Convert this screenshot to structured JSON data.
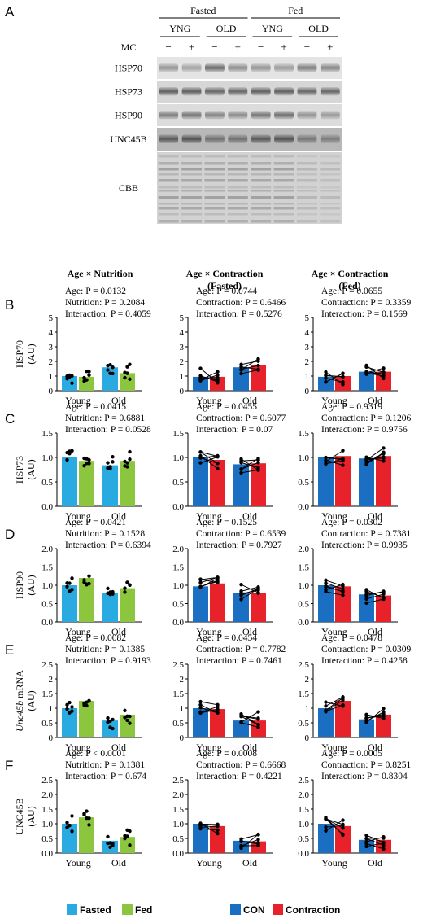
{
  "panel_letters": [
    "A",
    "B",
    "C",
    "D",
    "E",
    "F"
  ],
  "blot": {
    "groups": [
      "Fasted",
      "Fed"
    ],
    "subgroups": [
      "YNG",
      "OLD",
      "YNG",
      "OLD"
    ],
    "mc_label": "MC",
    "mc_signs": [
      "−",
      "+",
      "−",
      "+",
      "−",
      "+",
      "−",
      "+"
    ],
    "rows": [
      "HSP70",
      "HSP73",
      "HSP90",
      "UNC45B",
      "CBB"
    ]
  },
  "column_titles": [
    [
      "Age × Nutrition"
    ],
    [
      "Age × Contraction",
      "(Fasted)"
    ],
    [
      "Age × Contraction",
      "(Fed)"
    ]
  ],
  "legend": {
    "left": [
      {
        "label": "Fasted",
        "color": "#29abe2"
      },
      {
        "label": "Fed",
        "color": "#8cc63f"
      }
    ],
    "right": [
      {
        "label": "CON",
        "color": "#1b6fc2"
      },
      {
        "label": "Contraction",
        "color": "#e8222a"
      }
    ]
  },
  "chart_data": [
    {
      "type": "bar",
      "row": "B",
      "column": 1,
      "ylabel": "HSP70",
      "yunit": "(AU)",
      "ylim": [
        0,
        5
      ],
      "yticks": [
        "0",
        "1",
        "2",
        "3",
        "4",
        "5"
      ],
      "categories": [
        "Young",
        "Old"
      ],
      "stats": [
        "Age: P = 0.0132",
        "Nutrition: P = 0.2084",
        "Interaction: P = 0.4059"
      ],
      "series": [
        {
          "name": "Fasted",
          "values": [
            1.0,
            1.6
          ]
        },
        {
          "name": "Fed",
          "values": [
            0.95,
            1.2
          ]
        }
      ]
    },
    {
      "type": "bar",
      "row": "B",
      "column": 2,
      "ylim": [
        0,
        5
      ],
      "yticks": [
        "0",
        "1",
        "2",
        "3",
        "4",
        "5"
      ],
      "categories": [
        "Young",
        "Old"
      ],
      "stats": [
        "Age: P = 0.0744",
        "Contraction: P = 0.6466",
        "Interaction: P = 0.5276"
      ],
      "series": [
        {
          "name": "CON",
          "values": [
            0.95,
            1.6
          ]
        },
        {
          "name": "Contraction",
          "values": [
            0.95,
            1.75
          ]
        }
      ]
    },
    {
      "type": "bar",
      "row": "B",
      "column": 3,
      "ylim": [
        0,
        5
      ],
      "yticks": [
        "0",
        "1",
        "2",
        "3",
        "4",
        "5"
      ],
      "categories": [
        "Young",
        "Old"
      ],
      "stats": [
        "Age: P = 0.0655",
        "Contraction: P = 0.3359",
        "Interaction: P = 0.1569"
      ],
      "series": [
        {
          "name": "CON",
          "values": [
            0.95,
            1.3
          ]
        },
        {
          "name": "Contraction",
          "values": [
            1.0,
            1.3
          ]
        }
      ]
    },
    {
      "type": "bar",
      "row": "C",
      "column": 1,
      "ylabel": "HSP73",
      "yunit": "(AU)",
      "ylim": [
        0,
        1.5
      ],
      "yticks": [
        "0.0",
        "0.5",
        "1.0",
        "1.5"
      ],
      "categories": [
        "Young",
        "Old"
      ],
      "stats": [
        "Age: P = 0.0415",
        "Nutrition: P = 0.6881",
        "Interaction: P = 0.0528"
      ],
      "series": [
        {
          "name": "Fasted",
          "values": [
            1.0,
            0.84
          ]
        },
        {
          "name": "Fed",
          "values": [
            0.93,
            0.93
          ]
        }
      ]
    },
    {
      "type": "bar",
      "row": "C",
      "column": 2,
      "ylim": [
        0,
        1.5
      ],
      "yticks": [
        "0.0",
        "0.5",
        "1.0",
        "1.5"
      ],
      "categories": [
        "Young",
        "Old"
      ],
      "stats": [
        "Age: P = 0.0455",
        "Contraction: P = 0.6077",
        "Interaction: P = 0.07"
      ],
      "series": [
        {
          "name": "CON",
          "values": [
            1.0,
            0.86
          ]
        },
        {
          "name": "Contraction",
          "values": [
            0.95,
            0.88
          ]
        }
      ]
    },
    {
      "type": "bar",
      "row": "C",
      "column": 3,
      "ylim": [
        0,
        1.5
      ],
      "yticks": [
        "0.0",
        "0.5",
        "1.0",
        "1.5"
      ],
      "categories": [
        "Young",
        "Old"
      ],
      "stats": [
        "Age: P = 0.9319",
        "Contraction: P = 0.1206",
        "Interaction: P = 0.9756"
      ],
      "series": [
        {
          "name": "CON",
          "values": [
            1.0,
            0.98
          ]
        },
        {
          "name": "Contraction",
          "values": [
            1.03,
            1.03
          ]
        }
      ]
    },
    {
      "type": "bar",
      "row": "D",
      "column": 1,
      "ylabel": "HSP90",
      "yunit": "(AU)",
      "ylim": [
        0,
        2
      ],
      "yticks": [
        "0.0",
        "0.5",
        "1.0",
        "1.5",
        "2.0"
      ],
      "categories": [
        "Young",
        "Old"
      ],
      "stats": [
        "Age: P = 0.0421",
        "Nutrition: P = 0.1528",
        "Interaction: P = 0.6394"
      ],
      "series": [
        {
          "name": "Fasted",
          "values": [
            1.0,
            0.8
          ]
        },
        {
          "name": "Fed",
          "values": [
            1.2,
            0.92
          ]
        }
      ]
    },
    {
      "type": "bar",
      "row": "D",
      "column": 2,
      "ylim": [
        0,
        2
      ],
      "yticks": [
        "0.0",
        "0.5",
        "1.0",
        "1.5",
        "2.0"
      ],
      "categories": [
        "Young",
        "Old"
      ],
      "stats": [
        "Age: P = 0.1525",
        "Contraction: P = 0.6539",
        "Interaction: P = 0.7927"
      ],
      "series": [
        {
          "name": "CON",
          "values": [
            0.97,
            0.78
          ]
        },
        {
          "name": "Contraction",
          "values": [
            1.05,
            0.8
          ]
        }
      ]
    },
    {
      "type": "bar",
      "row": "D",
      "column": 3,
      "ylim": [
        0,
        2
      ],
      "yticks": [
        "0.0",
        "0.5",
        "1.0",
        "1.5",
        "2.0"
      ],
      "categories": [
        "Young",
        "Old"
      ],
      "stats": [
        "Age: P = 0.0302",
        "Contraction: P = 0.7381",
        "Interaction: P = 0.9935"
      ],
      "series": [
        {
          "name": "CON",
          "values": [
            1.0,
            0.75
          ]
        },
        {
          "name": "Contraction",
          "values": [
            0.97,
            0.72
          ]
        }
      ]
    },
    {
      "type": "bar",
      "row": "E",
      "column": 1,
      "ylabel": "Unc45b",
      "ylabel_suffix": " mRNA",
      "yunit": "(AU)",
      "ylim": [
        0,
        2.5
      ],
      "yticks": [
        "0",
        "0.5",
        "1",
        "1.5",
        "2",
        "2.5"
      ],
      "categories": [
        "Young",
        "Old"
      ],
      "stats": [
        "Age: P = 0.0082",
        "Nutrition: P = 0.1385",
        "Interaction: P = 0.9193"
      ],
      "series": [
        {
          "name": "Fasted",
          "values": [
            1.0,
            0.58
          ]
        },
        {
          "name": "Fed",
          "values": [
            1.25,
            0.78
          ]
        }
      ]
    },
    {
      "type": "bar",
      "row": "E",
      "column": 2,
      "ylim": [
        0,
        2.5
      ],
      "yticks": [
        "0",
        "0.5",
        "1",
        "1.5",
        "2",
        "2.5"
      ],
      "categories": [
        "Young",
        "Old"
      ],
      "stats": [
        "Age: P = 0.0454",
        "Contraction: P = 0.7782",
        "Interaction: P = 0.7461"
      ],
      "series": [
        {
          "name": "CON",
          "values": [
            1.0,
            0.58
          ]
        },
        {
          "name": "Contraction",
          "values": [
            0.97,
            0.58
          ]
        }
      ]
    },
    {
      "type": "bar",
      "row": "E",
      "column": 3,
      "ylim": [
        0,
        2.5
      ],
      "yticks": [
        "0",
        "0.5",
        "1",
        "1.5",
        "2",
        "2.5"
      ],
      "categories": [
        "Young",
        "Old"
      ],
      "stats": [
        "Age: P = 0.0478",
        "Contraction: P = 0.0309",
        "Interaction: P = 0.4258"
      ],
      "series": [
        {
          "name": "CON",
          "values": [
            1.0,
            0.62
          ]
        },
        {
          "name": "Contraction",
          "values": [
            1.25,
            0.78
          ]
        }
      ]
    },
    {
      "type": "bar",
      "row": "F",
      "column": 1,
      "ylabel": "UNC45B",
      "yunit": "(AU)",
      "ylim": [
        0,
        2.5
      ],
      "yticks": [
        "0.0",
        "0.5",
        "1.0",
        "1.5",
        "2.0",
        "2.5"
      ],
      "categories": [
        "Young",
        "Old"
      ],
      "stats": [
        "Age: P < 0.0001",
        "Nutrition: P = 0.1381",
        "Interaction: P = 0.674"
      ],
      "series": [
        {
          "name": "Fasted",
          "values": [
            1.0,
            0.42
          ]
        },
        {
          "name": "Fed",
          "values": [
            1.22,
            0.55
          ]
        }
      ]
    },
    {
      "type": "bar",
      "row": "F",
      "column": 2,
      "ylim": [
        0,
        2.5
      ],
      "yticks": [
        "0.0",
        "0.5",
        "1.0",
        "1.5",
        "2.0",
        "2.5"
      ],
      "categories": [
        "Young",
        "Old"
      ],
      "stats": [
        "Age: P = 0.0008",
        "Contraction: P = 0.6668",
        "Interaction: P = 0.4221"
      ],
      "series": [
        {
          "name": "CON",
          "values": [
            1.0,
            0.42
          ]
        },
        {
          "name": "Contraction",
          "values": [
            0.92,
            0.4
          ]
        }
      ]
    },
    {
      "type": "bar",
      "row": "F",
      "column": 3,
      "ylim": [
        0,
        2.5
      ],
      "yticks": [
        "0.0",
        "0.5",
        "1.0",
        "1.5",
        "2.0",
        "2.5"
      ],
      "categories": [
        "Young",
        "Old"
      ],
      "stats": [
        "Age: P = 0.0005",
        "Contraction: P = 0.8251",
        "Interaction: P = 0.8304"
      ],
      "series": [
        {
          "name": "CON",
          "values": [
            1.0,
            0.45
          ]
        },
        {
          "name": "Contraction",
          "values": [
            0.92,
            0.45
          ]
        }
      ]
    }
  ]
}
